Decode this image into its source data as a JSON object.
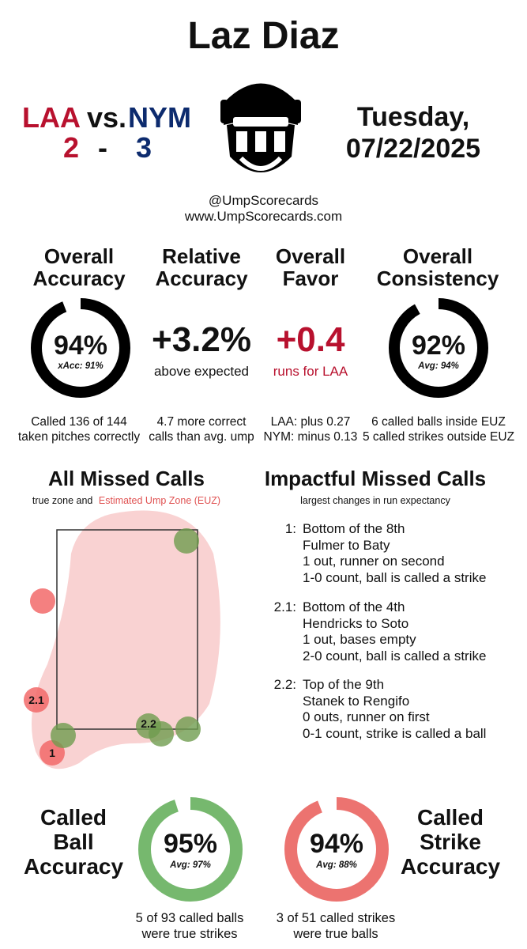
{
  "header": {
    "umpire": "Laz Diaz",
    "away_team": "LAA",
    "vs": "vs.",
    "home_team": "NYM",
    "away_score": "2",
    "dash": "-",
    "home_score": "3",
    "day": "Tuesday,",
    "date": "07/22/2025",
    "handle": "@UmpScorecards",
    "website": "www.UmpScorecards.com"
  },
  "stats": {
    "overall_accuracy": {
      "title_1": "Overall",
      "title_2": "Accuracy",
      "value": "94%",
      "sub": "xAcc: 91%",
      "fraction": 0.94,
      "note_1": "Called 136 of 144",
      "note_2": "taken pitches correctly"
    },
    "relative_accuracy": {
      "title_1": "Relative",
      "title_2": "Accuracy",
      "value": "+3.2%",
      "sub": "above expected",
      "note_1": "4.7 more correct",
      "note_2": "calls than avg. ump"
    },
    "overall_favor": {
      "title_1": "Overall",
      "title_2": "Favor",
      "value": "+0.4",
      "sub": "runs for LAA",
      "note_1": "LAA: plus 0.27",
      "note_2": "NYM: minus 0.13"
    },
    "overall_consistency": {
      "title_1": "Overall",
      "title_2": "Consistency",
      "value": "92%",
      "sub": "Avg: 94%",
      "fraction": 0.92,
      "note_1": "6 called balls inside EUZ",
      "note_2": "5 called strikes outside EUZ"
    }
  },
  "missed_calls": {
    "title": "All Missed Calls",
    "caption_plain": "true zone and",
    "caption_colored": "Estimated Ump Zone (EUZ)",
    "labels": [
      "2.1",
      "2.2",
      "1"
    ]
  },
  "impactful": {
    "title": "Impactful Missed Calls",
    "caption": "largest changes in run expectancy",
    "items": [
      {
        "num": "1:",
        "lines": [
          "Bottom of the 8th",
          "Fulmer to Baty",
          "1 out, runner on second",
          "1-0 count, ball is called a strike"
        ]
      },
      {
        "num": "2.1:",
        "lines": [
          "Bottom of the 4th",
          "Hendricks to Soto",
          "1 out, bases empty",
          "2-0 count, ball is called a strike"
        ]
      },
      {
        "num": "2.2:",
        "lines": [
          "Top of the 9th",
          "Stanek to Rengifo",
          "0 outs, runner on first",
          "0-1 count, strike is called a ball"
        ]
      }
    ]
  },
  "called_ball": {
    "title_1": "Called",
    "title_2": "Ball",
    "title_3": "Accuracy",
    "value": "95%",
    "sub": "Avg: 97%",
    "fraction": 0.95,
    "note_1": "5 of 93 called balls",
    "note_2": "were true strikes",
    "color": "#76b86e"
  },
  "called_strike": {
    "title_1": "Called",
    "title_2": "Strike",
    "title_3": "Accuracy",
    "value": "94%",
    "sub": "Avg: 88%",
    "fraction": 0.94,
    "note_1": "3 of 51 called strikes",
    "note_2": "were true balls",
    "color": "#ec7370"
  },
  "colors": {
    "laa": "#b8112e",
    "nym": "#0d2b6e",
    "euz": "#f8caca",
    "miss_red": "#f26a6a",
    "miss_green": "#6f9c4f",
    "ring": "#000000"
  }
}
